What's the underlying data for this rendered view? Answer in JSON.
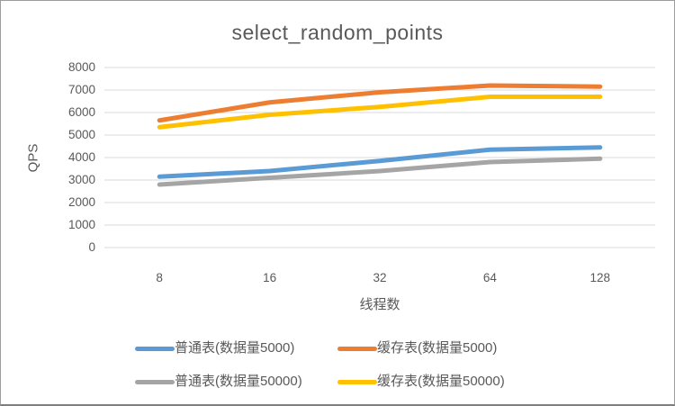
{
  "window": {
    "background": "#ffffff",
    "border_color": "#9c9c9c",
    "border_bottom_color": "#7f7f7f"
  },
  "chart_data": {
    "type": "line",
    "title": "select_random_points",
    "xlabel": "线程数",
    "ylabel": "QPS",
    "categories": [
      "8",
      "16",
      "32",
      "64",
      "128"
    ],
    "series": [
      {
        "name": "普通表(数据量5000)",
        "color": "#5B9BD5",
        "values": [
          3150,
          3400,
          3850,
          4350,
          4450
        ]
      },
      {
        "name": "缓存表(数据量5000)",
        "color": "#ED7D31",
        "values": [
          5650,
          6450,
          6900,
          7200,
          7150
        ]
      },
      {
        "name": "普通表(数据量50000)",
        "color": "#A5A5A5",
        "values": [
          2800,
          3100,
          3400,
          3800,
          3950
        ]
      },
      {
        "name": "缓存表(数据量50000)",
        "color": "#FFC000",
        "values": [
          5350,
          5900,
          6250,
          6700,
          6700
        ]
      }
    ],
    "ylim": [
      0,
      8000
    ],
    "yticks": [
      0,
      1000,
      2000,
      3000,
      4000,
      5000,
      6000,
      7000,
      8000
    ],
    "grid": true,
    "gridline_color": "#D9D9D9",
    "text_color": "#595959",
    "line_width": 5,
    "legend_position": "bottom",
    "legend_rows": [
      [
        0,
        1
      ],
      [
        2,
        3
      ]
    ]
  }
}
